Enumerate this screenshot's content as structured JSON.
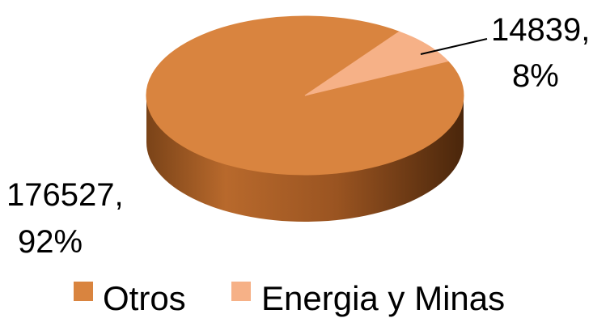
{
  "chart_data": {
    "type": "pie",
    "three_d": true,
    "title": "",
    "categories": [
      "Otros",
      "Energia y Minas"
    ],
    "values": [
      176527,
      14839
    ],
    "percent_labels": [
      "92%",
      "8%"
    ],
    "data_labels": [
      "176527,",
      "14839,"
    ],
    "colors": [
      "#D9843F",
      "#F6B187"
    ],
    "legend": {
      "placement": "bottom",
      "entries": [
        "Otros",
        "Energia y Minas"
      ]
    }
  }
}
